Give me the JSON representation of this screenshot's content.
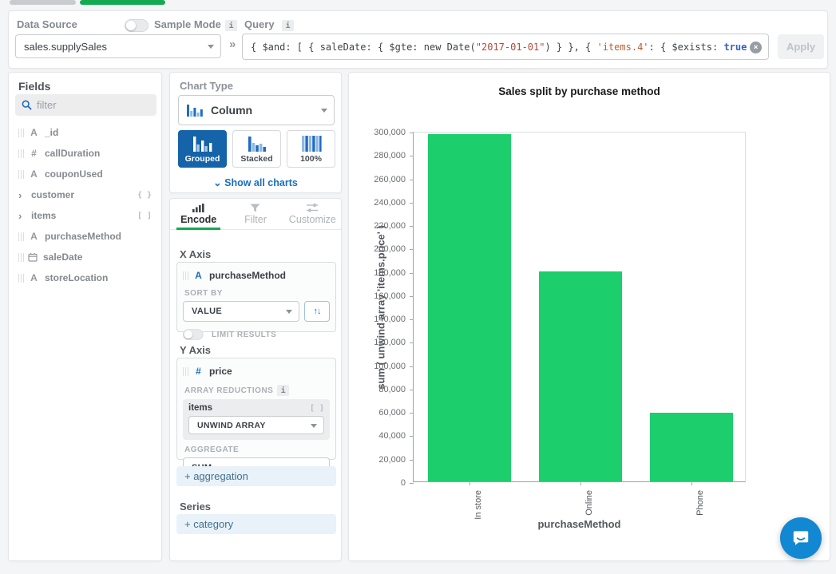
{
  "topbar": {
    "data_source_label": "Data Source",
    "sample_mode_label": "Sample Mode",
    "query_label": "Query",
    "data_source_value": "sales.supplySales",
    "separator_glyph": "»",
    "query_segments": [
      {
        "role": "default",
        "text": "{ $and: [ { saleDate: { $gte: new Date("
      },
      {
        "role": "string",
        "text": "\"2017-01-01\""
      },
      {
        "role": "default",
        "text": ") } }, { "
      },
      {
        "role": "field",
        "text": "'items.4'"
      },
      {
        "role": "default",
        "text": ": { $exists: "
      },
      {
        "role": "keyword",
        "text": "true"
      },
      {
        "role": "default",
        "text": " }"
      }
    ],
    "clear_glyph": "×",
    "apply_label": "Apply",
    "info_badge_glyph": "i"
  },
  "fields_panel": {
    "title": "Fields",
    "filter_placeholder": "filter",
    "fields": [
      {
        "name": "_id",
        "type": "string"
      },
      {
        "name": "callDuration",
        "type": "number"
      },
      {
        "name": "couponUsed",
        "type": "string"
      },
      {
        "name": "customer",
        "type": "object",
        "badge": "{ }"
      },
      {
        "name": "items",
        "type": "array",
        "badge": "[ ]"
      },
      {
        "name": "purchaseMethod",
        "type": "string"
      },
      {
        "name": "saleDate",
        "type": "date"
      },
      {
        "name": "storeLocation",
        "type": "string"
      }
    ],
    "string_glyph": "A",
    "number_glyph": "#",
    "expand_glyph": "›"
  },
  "chart_builder": {
    "chart_type_label": "Chart Type",
    "chart_type_value": "Column",
    "variants": [
      {
        "label": "Grouped",
        "selected": true
      },
      {
        "label": "Stacked",
        "selected": false
      },
      {
        "label": "100%",
        "selected": false
      }
    ],
    "show_all_charts_label": "Show all charts",
    "show_all_chevron": "⌄",
    "tabs": [
      {
        "label": "Encode",
        "active": true
      },
      {
        "label": "Filter",
        "active": false
      },
      {
        "label": "Customize",
        "active": false
      }
    ],
    "x_axis": {
      "title": "X Axis",
      "field": "purchaseMethod",
      "sort_by_label": "SORT BY",
      "sort_by_value": "VALUE",
      "sort_icon_glyph": "↑↓",
      "limit_results_label": "LIMIT RESULTS"
    },
    "y_axis": {
      "title": "Y Axis",
      "field": "price",
      "array_reductions_label": "ARRAY REDUCTIONS",
      "reduction_field": "items",
      "reduction_badge": "[ ]",
      "reduction_value": "UNWIND ARRAY",
      "aggregate_label": "AGGREGATE",
      "aggregate_value": "SUM"
    },
    "add_aggregation_label": "+ aggregation",
    "series_label": "Series",
    "add_category_label": "+ category"
  },
  "chart_data": {
    "type": "bar",
    "title": "Sales split by purchase method",
    "categories": [
      "In store",
      "Online",
      "Phone"
    ],
    "values": [
      297000,
      180000,
      59000
    ],
    "xlabel": "purchaseMethod",
    "ylabel": "sum ( unwind array 'items.price' )",
    "ylim": [
      0,
      300000
    ],
    "ytick_step": 20000,
    "bar_color": "#1dce6c",
    "grid": false,
    "legend": "none"
  },
  "colors": {
    "accent_green": "#13aa52",
    "accent_blue": "#1563a8",
    "link_blue": "#1a6ebf",
    "bar_green": "#1dce6c",
    "intercom_blue": "#1287d2"
  }
}
